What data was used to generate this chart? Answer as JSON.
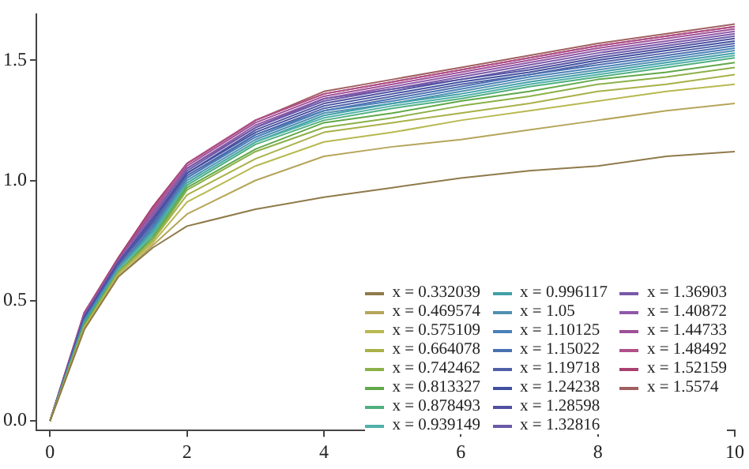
{
  "chart_data": {
    "type": "line",
    "x": [
      0,
      0.5,
      1,
      1.5,
      2,
      3,
      4,
      5,
      6,
      7,
      8,
      9,
      10
    ],
    "xlim": [
      -0.2,
      10
    ],
    "xticks": [
      0,
      2,
      4,
      6,
      8,
      10
    ],
    "ylim": [
      -0.04,
      1.69
    ],
    "yticks": [
      {
        "value": 0,
        "label": "0.0"
      },
      {
        "value": 0.5,
        "label": "0.5"
      },
      {
        "value": 1,
        "label": "1.0"
      },
      {
        "value": 1.5,
        "label": "1.5"
      }
    ],
    "grid": false,
    "legend": "bottom right",
    "marker": "none",
    "line_style": "solid",
    "series": [
      {
        "name": "x = 0.332039",
        "color": "#8f7a4a",
        "values": [
          0,
          0.38,
          0.6,
          0.72,
          0.81,
          0.88,
          0.93,
          0.97,
          1.01,
          1.04,
          1.06,
          1.1,
          1.12
        ]
      },
      {
        "name": "x = 0.469574",
        "color": "#b5a55a",
        "values": [
          0,
          0.38,
          0.6,
          0.73,
          0.86,
          1.0,
          1.1,
          1.14,
          1.17,
          1.21,
          1.25,
          1.29,
          1.32
        ]
      },
      {
        "name": "x = 0.575109",
        "color": "#b8b850",
        "values": [
          0,
          0.39,
          0.61,
          0.74,
          0.91,
          1.06,
          1.16,
          1.2,
          1.25,
          1.29,
          1.33,
          1.37,
          1.4
        ]
      },
      {
        "name": "x = 0.664078",
        "color": "#a8b048",
        "values": [
          0,
          0.39,
          0.61,
          0.75,
          0.94,
          1.09,
          1.2,
          1.24,
          1.28,
          1.32,
          1.37,
          1.4,
          1.44
        ]
      },
      {
        "name": "x = 0.742462",
        "color": "#8cb048",
        "values": [
          0,
          0.39,
          0.62,
          0.75,
          0.96,
          1.12,
          1.22,
          1.26,
          1.31,
          1.35,
          1.4,
          1.43,
          1.47
        ]
      },
      {
        "name": "x = 0.813327",
        "color": "#60a848",
        "values": [
          0,
          0.4,
          0.62,
          0.76,
          0.97,
          1.13,
          1.24,
          1.28,
          1.33,
          1.37,
          1.42,
          1.45,
          1.49
        ]
      },
      {
        "name": "x = 0.878493",
        "color": "#50b080",
        "values": [
          0,
          0.4,
          0.62,
          0.77,
          0.98,
          1.15,
          1.25,
          1.3,
          1.34,
          1.39,
          1.43,
          1.47,
          1.51
        ]
      },
      {
        "name": "x = 0.939149",
        "color": "#50b0a8",
        "values": [
          0,
          0.4,
          0.63,
          0.78,
          0.99,
          1.16,
          1.26,
          1.31,
          1.35,
          1.4,
          1.44,
          1.48,
          1.52
        ]
      },
      {
        "name": "x = 0.996117",
        "color": "#40a0a8",
        "values": [
          0,
          0.41,
          0.63,
          0.79,
          0.99,
          1.16,
          1.27,
          1.32,
          1.36,
          1.41,
          1.45,
          1.49,
          1.53
        ]
      },
      {
        "name": "x = 1.05",
        "color": "#5090b0",
        "values": [
          0,
          0.41,
          0.64,
          0.79,
          1.0,
          1.17,
          1.28,
          1.32,
          1.37,
          1.42,
          1.46,
          1.5,
          1.54
        ]
      },
      {
        "name": "x = 1.10125",
        "color": "#4a80b8",
        "values": [
          0,
          0.42,
          0.64,
          0.8,
          1.01,
          1.18,
          1.29,
          1.33,
          1.38,
          1.43,
          1.47,
          1.51,
          1.55
        ]
      },
      {
        "name": "x = 1.15022",
        "color": "#4a70b0",
        "values": [
          0,
          0.42,
          0.64,
          0.81,
          1.01,
          1.19,
          1.29,
          1.34,
          1.39,
          1.44,
          1.48,
          1.52,
          1.56
        ]
      },
      {
        "name": "x = 1.19718",
        "color": "#5060a8",
        "values": [
          0,
          0.42,
          0.65,
          0.82,
          1.02,
          1.19,
          1.3,
          1.35,
          1.4,
          1.44,
          1.49,
          1.53,
          1.57
        ]
      },
      {
        "name": "x = 1.24238",
        "color": "#4050a0",
        "values": [
          0,
          0.43,
          0.65,
          0.83,
          1.03,
          1.2,
          1.31,
          1.36,
          1.41,
          1.45,
          1.5,
          1.54,
          1.58
        ]
      },
      {
        "name": "x = 1.28598",
        "color": "#5050a0",
        "values": [
          0,
          0.43,
          0.66,
          0.84,
          1.03,
          1.21,
          1.32,
          1.37,
          1.42,
          1.46,
          1.51,
          1.55,
          1.59
        ]
      },
      {
        "name": "x = 1.32816",
        "color": "#6a5aa8",
        "values": [
          0,
          0.43,
          0.66,
          0.84,
          1.04,
          1.22,
          1.33,
          1.38,
          1.42,
          1.47,
          1.52,
          1.56,
          1.6
        ]
      },
      {
        "name": "x = 1.36903",
        "color": "#7a58a8",
        "values": [
          0,
          0.44,
          0.66,
          0.85,
          1.05,
          1.22,
          1.34,
          1.38,
          1.43,
          1.48,
          1.53,
          1.57,
          1.61
        ]
      },
      {
        "name": "x = 1.40872",
        "color": "#9058a8",
        "values": [
          0,
          0.44,
          0.67,
          0.86,
          1.05,
          1.23,
          1.34,
          1.39,
          1.44,
          1.49,
          1.54,
          1.58,
          1.62
        ]
      },
      {
        "name": "x = 1.44733",
        "color": "#a05098",
        "values": [
          0,
          0.44,
          0.67,
          0.87,
          1.06,
          1.24,
          1.35,
          1.4,
          1.45,
          1.5,
          1.55,
          1.59,
          1.63
        ]
      },
      {
        "name": "x = 1.48492",
        "color": "#b05088",
        "values": [
          0,
          0.45,
          0.67,
          0.88,
          1.07,
          1.25,
          1.36,
          1.41,
          1.46,
          1.51,
          1.56,
          1.6,
          1.64
        ]
      },
      {
        "name": "x = 1.52159",
        "color": "#a84070",
        "values": [
          0,
          0.45,
          0.68,
          0.89,
          1.07,
          1.25,
          1.36,
          1.41,
          1.46,
          1.51,
          1.56,
          1.6,
          1.64
        ]
      },
      {
        "name": "x = 1.5574",
        "color": "#a06060",
        "values": [
          0,
          0.45,
          0.68,
          0.89,
          1.07,
          1.25,
          1.37,
          1.42,
          1.47,
          1.52,
          1.57,
          1.61,
          1.65
        ]
      }
    ]
  }
}
